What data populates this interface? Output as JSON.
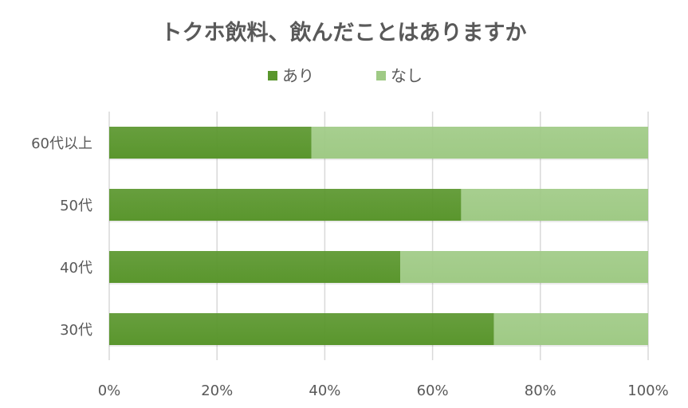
{
  "chart_data": {
    "type": "bar",
    "orientation": "horizontal",
    "stacked": "percent",
    "title": "トクホ飲料、飲んだことはありますか",
    "categories": [
      "60代以上",
      "50代",
      "40代",
      "30代"
    ],
    "series": [
      {
        "name": "あり",
        "color": "#5a962d",
        "values": [
          37.5,
          65.3,
          54.0,
          71.4
        ]
      },
      {
        "name": "なし",
        "color": "#9fca85",
        "values": [
          62.5,
          34.7,
          46.0,
          28.6
        ]
      }
    ],
    "xticks": [
      "0%",
      "20%",
      "40%",
      "60%",
      "80%",
      "100%"
    ],
    "xlim": [
      0,
      100
    ],
    "grid": true,
    "legend_position": "top"
  }
}
